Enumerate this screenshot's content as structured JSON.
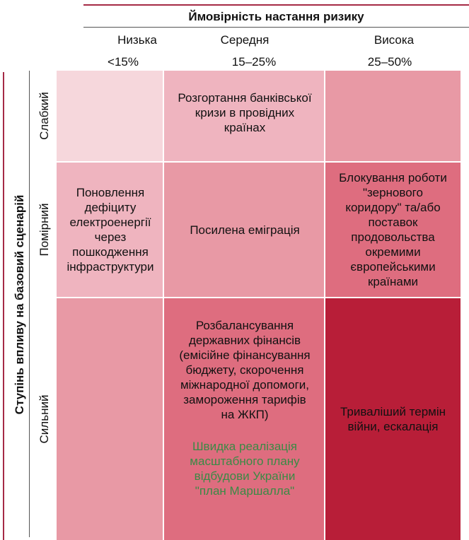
{
  "header": {
    "probability_title": "Ймовірність настання ризику",
    "columns": [
      {
        "name": "Низька",
        "range": "<15%"
      },
      {
        "name": "Середня",
        "range": "15–25%"
      },
      {
        "name": "Висока",
        "range": "25–50%"
      }
    ]
  },
  "sidebar": {
    "impact_title": "Ступінь впливу на базовий сценарій",
    "rows": [
      {
        "label": "Слабкий"
      },
      {
        "label": "Помірний"
      },
      {
        "label": "Сильний"
      }
    ]
  },
  "matrix": {
    "cells": {
      "weak_low": "",
      "weak_mid": "Розгортання банківської\nкризи в провідних\nкраїнах",
      "weak_high": "",
      "mod_low": "Поновлення\nдефіциту\nелектроенергії\nчерез\nпошкодження\nінфраструктури",
      "mod_mid": "Посилена еміграція",
      "mod_high": "Блокування роботи\n\"зернового\nкоридору\" та/або\nпоставок\nпродовольства\nокремими\nєвропейськими\nкраїнами",
      "strong_low": "",
      "strong_mid": "Розбалансування\nдержавних фінансів\n(емісійне фінансування\nбюджету, скорочення\nміжнародної допомоги,\nзамороження тарифів\nна ЖКП)",
      "strong_mid_positive": "Швидка реалізація\nмасштабного плану\nвідбудови України\n\"план Маршалла\"",
      "strong_high": "Триваліший термін\nвійни, ескалація"
    },
    "colors": {
      "very_low": "#f6d7dc",
      "low": "#efb4bf",
      "medium": "#e899a5",
      "high": "#de6d7f",
      "critical": "#b81e38",
      "positive_text": "#3a8a45"
    }
  }
}
